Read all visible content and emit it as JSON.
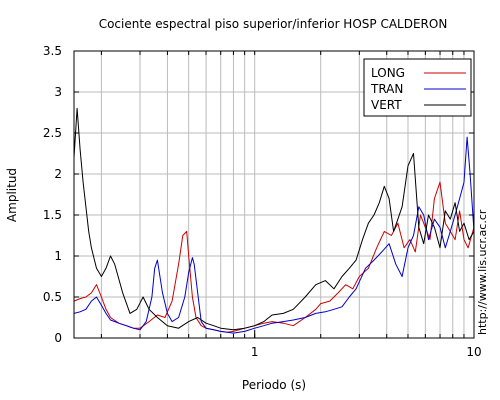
{
  "chart_data": {
    "type": "line",
    "title": "Cociente espectral piso superior/inferior  HOSP CALDERON",
    "xlabel": "Periodo (s)",
    "ylabel": "Amplitud",
    "xscale": "log",
    "xlim": [
      0.15,
      10
    ],
    "ylim": [
      0,
      3.5
    ],
    "x_tick_labels": [
      {
        "value": 1,
        "label": "1"
      },
      {
        "value": 10,
        "label": "10"
      }
    ],
    "y_ticks": [
      0,
      0.5,
      1,
      1.5,
      2,
      2.5,
      3,
      3.5
    ],
    "y_tick_labels": [
      "0",
      "0.5",
      "1",
      "1.5",
      "2",
      "2.5",
      "3",
      "3.5"
    ],
    "grid": true,
    "legend_position": "top-right",
    "credit": "http://www.lis.ucr.ac.cr",
    "series": [
      {
        "name": "LONG",
        "color": "#cc0000",
        "x": [
          0.15,
          0.16,
          0.17,
          0.18,
          0.19,
          0.2,
          0.21,
          0.22,
          0.24,
          0.26,
          0.28,
          0.3,
          0.33,
          0.36,
          0.39,
          0.42,
          0.45,
          0.47,
          0.49,
          0.5,
          0.52,
          0.54,
          0.57,
          0.6,
          0.65,
          0.7,
          0.75,
          0.8,
          0.9,
          1.0,
          1.1,
          1.2,
          1.35,
          1.5,
          1.7,
          1.9,
          2.0,
          2.2,
          2.4,
          2.6,
          2.8,
          3.0,
          3.3,
          3.6,
          3.9,
          4.2,
          4.5,
          4.8,
          5.1,
          5.4,
          5.7,
          6.0,
          6.3,
          6.6,
          7.0,
          7.4,
          7.8,
          8.2,
          8.6,
          9.0,
          9.4,
          10.0
        ],
        "y": [
          0.45,
          0.48,
          0.5,
          0.55,
          0.65,
          0.5,
          0.35,
          0.25,
          0.18,
          0.15,
          0.12,
          0.12,
          0.2,
          0.28,
          0.25,
          0.45,
          0.9,
          1.25,
          1.3,
          1.0,
          0.5,
          0.25,
          0.15,
          0.12,
          0.1,
          0.08,
          0.07,
          0.08,
          0.12,
          0.15,
          0.18,
          0.2,
          0.18,
          0.15,
          0.25,
          0.35,
          0.42,
          0.45,
          0.55,
          0.65,
          0.6,
          0.75,
          0.85,
          1.1,
          1.3,
          1.25,
          1.4,
          1.1,
          1.2,
          1.05,
          1.5,
          1.35,
          1.2,
          1.7,
          1.9,
          1.4,
          1.3,
          1.2,
          1.55,
          1.2,
          1.1,
          1.35
        ]
      },
      {
        "name": "TRAN",
        "color": "#0000cc",
        "x": [
          0.15,
          0.16,
          0.17,
          0.18,
          0.19,
          0.2,
          0.21,
          0.22,
          0.24,
          0.26,
          0.28,
          0.3,
          0.32,
          0.34,
          0.35,
          0.36,
          0.38,
          0.4,
          0.42,
          0.45,
          0.48,
          0.5,
          0.52,
          0.53,
          0.55,
          0.57,
          0.6,
          0.65,
          0.7,
          0.75,
          0.8,
          0.9,
          1.0,
          1.1,
          1.2,
          1.35,
          1.5,
          1.7,
          1.9,
          2.1,
          2.3,
          2.5,
          2.7,
          2.9,
          3.2,
          3.5,
          3.8,
          4.1,
          4.4,
          4.7,
          5.0,
          5.3,
          5.6,
          5.9,
          6.2,
          6.6,
          7.0,
          7.4,
          7.8,
          8.2,
          8.6,
          9.0,
          9.3,
          9.6,
          10.0
        ],
        "y": [
          0.3,
          0.32,
          0.35,
          0.45,
          0.5,
          0.4,
          0.3,
          0.22,
          0.18,
          0.15,
          0.12,
          0.1,
          0.2,
          0.5,
          0.85,
          0.95,
          0.55,
          0.3,
          0.2,
          0.25,
          0.5,
          0.8,
          0.98,
          0.9,
          0.55,
          0.2,
          0.12,
          0.1,
          0.08,
          0.07,
          0.06,
          0.08,
          0.12,
          0.15,
          0.18,
          0.2,
          0.22,
          0.25,
          0.3,
          0.32,
          0.35,
          0.38,
          0.5,
          0.6,
          0.85,
          0.95,
          1.05,
          1.15,
          0.9,
          0.75,
          1.1,
          1.25,
          1.6,
          1.5,
          1.2,
          1.45,
          1.35,
          1.1,
          1.3,
          1.5,
          1.7,
          1.9,
          2.45,
          2.0,
          1.3
        ]
      },
      {
        "name": "VERT",
        "color": "#000000",
        "x": [
          0.15,
          0.155,
          0.16,
          0.165,
          0.17,
          0.175,
          0.18,
          0.19,
          0.2,
          0.21,
          0.22,
          0.23,
          0.25,
          0.27,
          0.29,
          0.31,
          0.33,
          0.36,
          0.4,
          0.45,
          0.5,
          0.55,
          0.6,
          0.65,
          0.7,
          0.8,
          0.9,
          1.0,
          1.1,
          1.2,
          1.35,
          1.5,
          1.7,
          1.9,
          2.1,
          2.3,
          2.5,
          2.7,
          2.9,
          3.1,
          3.3,
          3.5,
          3.7,
          3.9,
          4.1,
          4.3,
          4.5,
          4.7,
          5.0,
          5.3,
          5.6,
          5.9,
          6.2,
          6.6,
          7.0,
          7.4,
          7.8,
          8.2,
          8.6,
          9.0,
          9.5,
          10.0
        ],
        "y": [
          2.2,
          2.8,
          2.3,
          1.9,
          1.6,
          1.3,
          1.1,
          0.85,
          0.75,
          0.85,
          1.0,
          0.9,
          0.55,
          0.3,
          0.35,
          0.5,
          0.35,
          0.25,
          0.15,
          0.12,
          0.2,
          0.25,
          0.18,
          0.15,
          0.12,
          0.1,
          0.12,
          0.15,
          0.2,
          0.28,
          0.3,
          0.35,
          0.5,
          0.65,
          0.7,
          0.6,
          0.75,
          0.85,
          0.95,
          1.2,
          1.4,
          1.5,
          1.65,
          1.85,
          1.7,
          1.3,
          1.45,
          1.6,
          2.1,
          2.25,
          1.35,
          1.15,
          1.5,
          1.35,
          1.1,
          1.55,
          1.45,
          1.65,
          1.3,
          1.4,
          1.2,
          1.3
        ]
      }
    ]
  }
}
